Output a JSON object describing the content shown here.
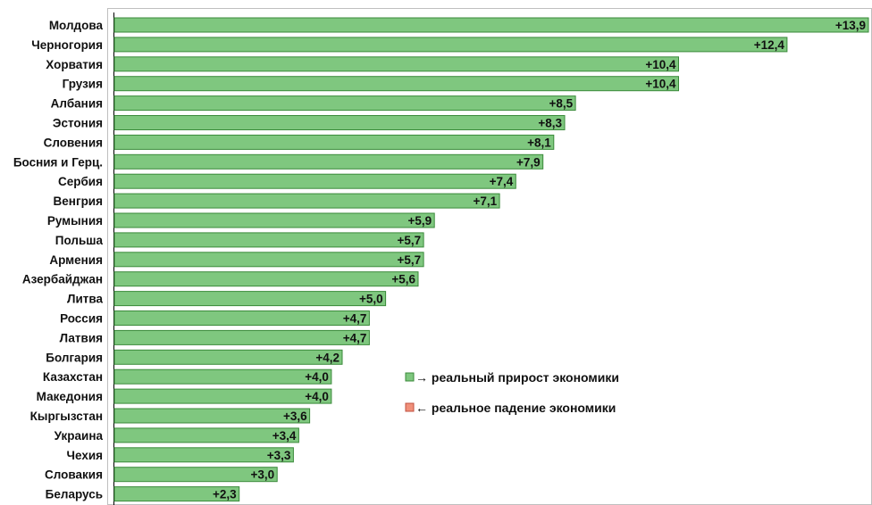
{
  "chart_data": {
    "type": "bar",
    "orientation": "horizontal",
    "categories": [
      "Молдова",
      "Черногория",
      "Хорватия",
      "Грузия",
      "Албания",
      "Эстония",
      "Словения",
      "Босния и Герц.",
      "Сербия",
      "Венгрия",
      "Румыния",
      "Польша",
      "Армения",
      "Азербайджан",
      "Литва",
      "Россия",
      "Латвия",
      "Болгария",
      "Казахстан",
      "Македония",
      "Кыргызстан",
      "Украина",
      "Чехия",
      "Словакия",
      "Беларусь"
    ],
    "values": [
      13.9,
      12.4,
      10.4,
      10.4,
      8.5,
      8.3,
      8.1,
      7.9,
      7.4,
      7.1,
      5.9,
      5.7,
      5.7,
      5.6,
      5.0,
      4.7,
      4.7,
      4.2,
      4.0,
      4.0,
      3.6,
      3.4,
      3.3,
      3.0,
      2.3
    ],
    "value_labels": [
      "+13,9",
      "+12,4",
      "+10,4",
      "+10,4",
      "+8,5",
      "+8,3",
      "+8,1",
      "+7,9",
      "+7,4",
      "+7,1",
      "+5,9",
      "+5,7",
      "+5,7",
      "+5,6",
      "+5,0",
      "+4,7",
      "+4,7",
      "+4,2",
      "+4,0",
      "+4,0",
      "+3,6",
      "+3,4",
      "+3,3",
      "+3,0",
      "+2,3"
    ],
    "xlim": [
      0,
      13.9
    ],
    "grid": false,
    "legend_position": "lower-right",
    "legend": [
      {
        "text": "→ реальный прирост экономики",
        "color": "#7fc77f",
        "border": "#3a8a3a"
      },
      {
        "text": "← реальное падение экономики",
        "color": "#f0907a",
        "border": "#c05040"
      }
    ],
    "colors": {
      "bar_fill": "#7fc77f",
      "bar_border": "#3a8a3a",
      "axis": "#000000",
      "frame": "#bfbfbf"
    }
  }
}
